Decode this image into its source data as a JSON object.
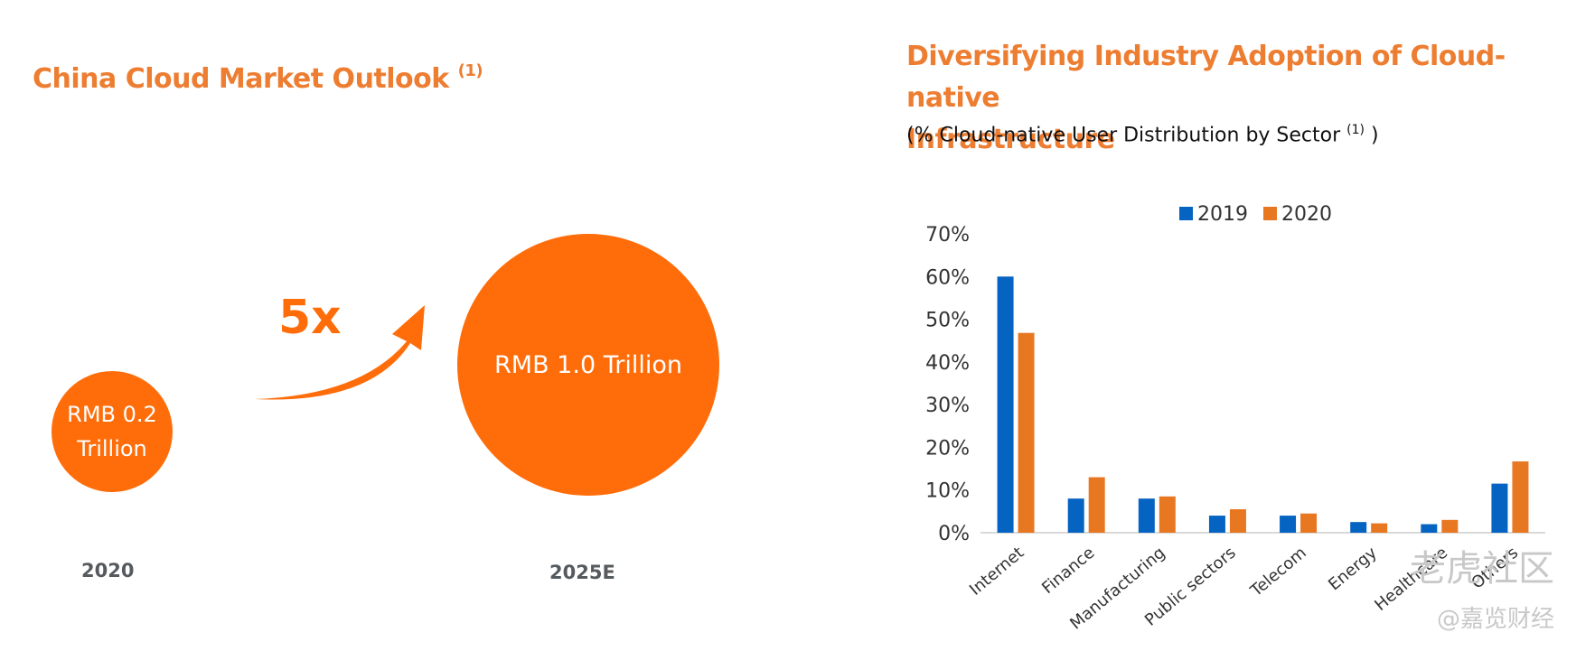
{
  "left": {
    "title": "China Cloud Market Outlook",
    "title_footnote": "(1)",
    "small_circle_line1": "RMB 0.2",
    "small_circle_line2": "Trillion",
    "large_circle_label": "RMB 1.0 Trillion",
    "multiplier": "5x",
    "year_start": "2020",
    "year_end": "2025E"
  },
  "right": {
    "title_line1": "Diversifying Industry Adoption of Cloud-native",
    "title_line2": "Infrastructure",
    "subtitle": "(% Cloud-native User Distribution by Sector",
    "subtitle_footnote": "(1)",
    "subtitle_close": ")"
  },
  "watermark": {
    "line1": "老虎社区",
    "line2": "@嘉览财经"
  },
  "chart_data": {
    "type": "bar",
    "categories": [
      "Internet",
      "Finance",
      "Manufacturing",
      "Public sectors",
      "Telecom",
      "Energy",
      "Healthcare",
      "Others"
    ],
    "series": [
      {
        "name": "2019",
        "values": [
          60,
          8,
          8,
          4,
          4,
          2.5,
          2,
          11.5
        ]
      },
      {
        "name": "2020",
        "values": [
          46.8,
          13,
          8.5,
          5.5,
          4.5,
          2.2,
          3,
          16.7
        ]
      }
    ],
    "ylim": [
      0,
      70
    ],
    "yticks": [
      0,
      10,
      20,
      30,
      40,
      50,
      60,
      70
    ],
    "ytick_labels": [
      "0%",
      "10%",
      "20%",
      "30%",
      "40%",
      "50%",
      "60%",
      "70%"
    ],
    "xlabel": "",
    "ylabel": "",
    "legend_position": "top",
    "grid": false,
    "colors": {
      "2019": "#0563C1",
      "2020": "#E87722"
    }
  }
}
